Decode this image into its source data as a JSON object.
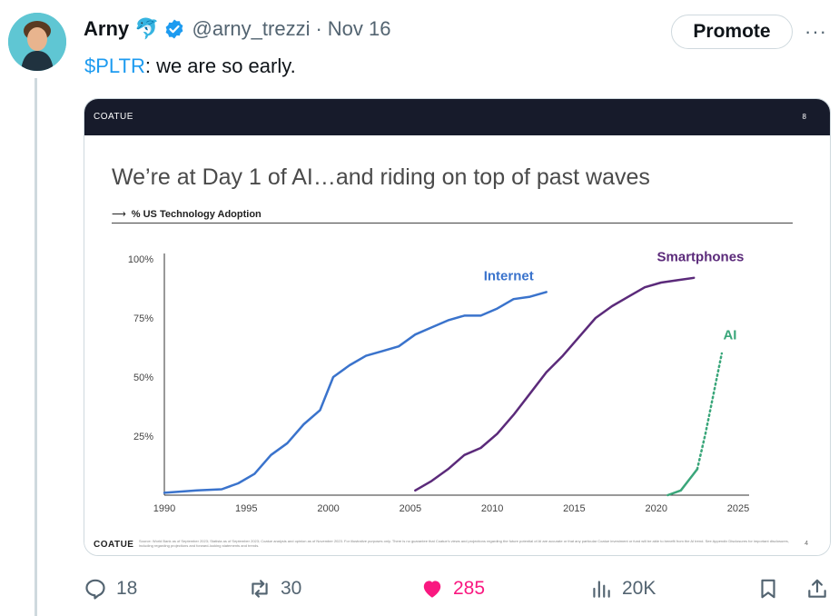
{
  "author": {
    "name": "Arny",
    "emoji": "🐬",
    "handle": "@arny_trezzi",
    "separator": "·",
    "date": "Nov 16"
  },
  "promote_label": "Promote",
  "more_label": "···",
  "tweet": {
    "cashtag": "$PLTR",
    "text": ": we are so early."
  },
  "slide": {
    "header_logo": "COATUE",
    "header_page": "8",
    "title": "We’re at Day 1 of AI…and riding on top of past waves",
    "subtitle_arrow": "⟶",
    "subtitle": "% US Technology Adoption",
    "footer_logo": "COATUE",
    "footer_text": "Source: World Bank as of September 2023; Statista as of September 2023; Coatue analysis and opinion as of November 2023. For illustrative purposes only. There is no guarantee that Coatue's views and projections regarding the future potential of AI are accurate or that any particular Coatue investment or fund will be able to benefit from the AI trend. See Appendix Disclosures for important disclosures, including regarding projections and forward-looking statements and trends.",
    "footer_page": "4"
  },
  "chart_data": {
    "type": "line",
    "title": "",
    "xlabel": "",
    "ylabel": "% US Technology Adoption",
    "xlim": [
      1990,
      2025
    ],
    "ylim": [
      0,
      100
    ],
    "x_ticks": [
      "1990",
      "1995",
      "2000",
      "2005",
      "2010",
      "2015",
      "2020",
      "2025"
    ],
    "y_ticks": [
      "25%",
      "50%",
      "75%",
      "100%"
    ],
    "grid": false,
    "series": [
      {
        "name": "Internet",
        "color": "#3a73cc",
        "style": "solid",
        "x": [
          1990,
          1992,
          1993.5,
          1994.5,
          1995.5,
          1996.5,
          1997.5,
          1998.5,
          1999.5,
          2000.3,
          2001.3,
          2002.3,
          2003.3,
          2004.3,
          2005.3,
          2006.3,
          2007.3,
          2008.3,
          2009.3,
          2010.3,
          2011.3,
          2012.3,
          2013.3
        ],
        "y": [
          1,
          2,
          2.5,
          5,
          9,
          17,
          22,
          30,
          36,
          50,
          55,
          59,
          61,
          63,
          68,
          71,
          74,
          76,
          76,
          79,
          83,
          84,
          86
        ]
      },
      {
        "name": "Smartphones",
        "color": "#5b2a7a",
        "style": "solid",
        "x": [
          2005.3,
          2006.3,
          2007.3,
          2008.3,
          2009.3,
          2010.3,
          2011.3,
          2012.3,
          2013.3,
          2014.3,
          2015.3,
          2016.3,
          2017.3,
          2018.3,
          2019.3,
          2020.3,
          2021.3,
          2022.3
        ],
        "y": [
          2,
          6,
          11,
          17,
          20,
          26,
          34,
          43,
          52,
          59,
          67,
          75,
          80,
          84,
          88,
          90,
          91,
          92
        ]
      },
      {
        "name": "AI",
        "color": "#3aa67a",
        "style": "solid",
        "x": [
          2020.7,
          2021.5,
          2022.5
        ],
        "y": [
          0,
          2,
          11
        ]
      },
      {
        "name": "AI (projected)",
        "color": "#3aa67a",
        "style": "dotted",
        "x": [
          2022.5,
          2023.0,
          2023.5,
          2024.0
        ],
        "y": [
          11,
          26,
          43,
          60
        ]
      }
    ]
  },
  "actions": {
    "replies": "18",
    "reposts": "30",
    "likes": "285",
    "views": "20K"
  },
  "colors": {
    "accent": "#1d9bf0",
    "like": "#f91880",
    "muted": "#536471"
  }
}
